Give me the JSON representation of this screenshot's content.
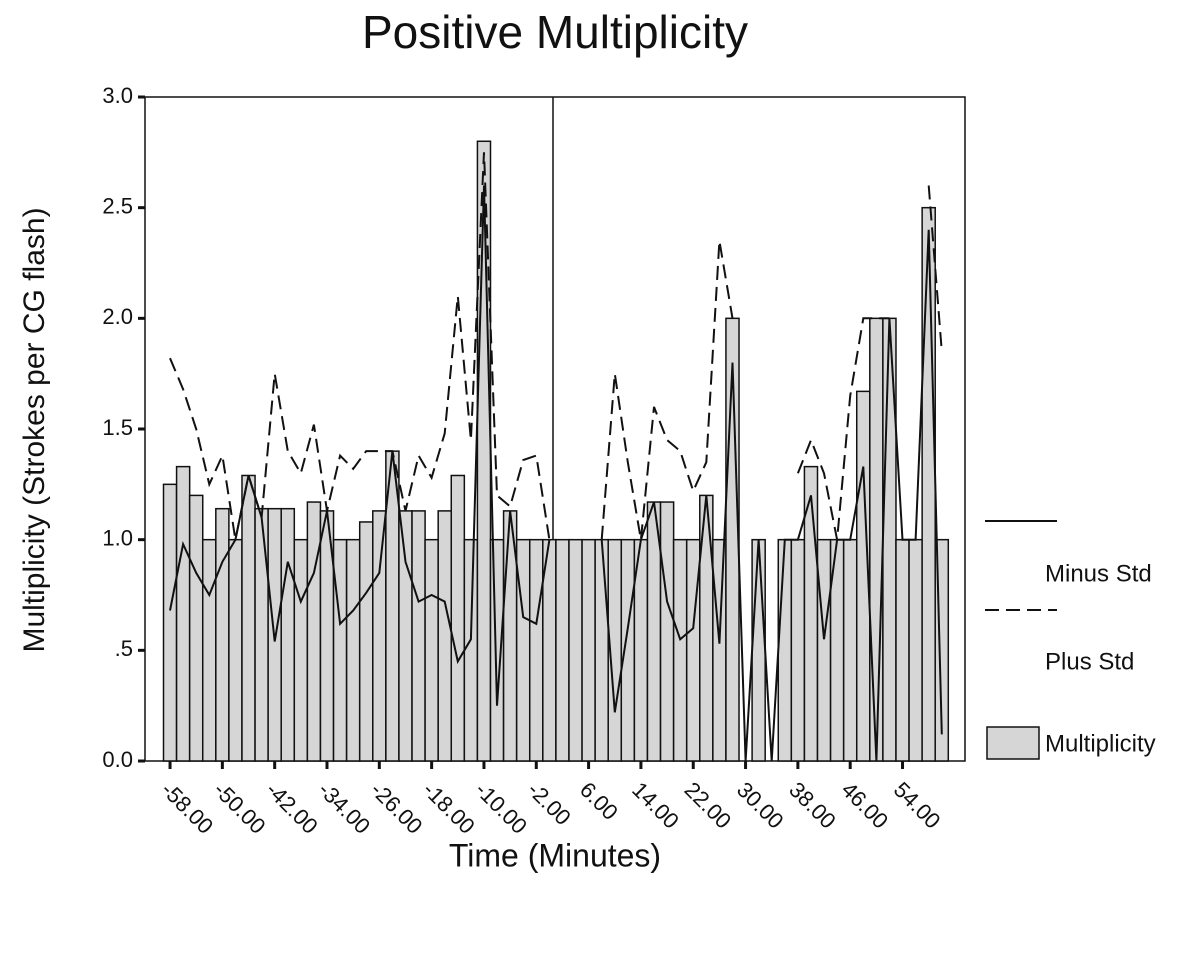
{
  "chart_data": {
    "type": "bar",
    "title": "Positive Multiplicity",
    "x_label": "Time (Minutes)",
    "y_label": "Multiplicity (Strokes per CG flash)",
    "categories": [
      "-58.00",
      null,
      null,
      null,
      "-50.00",
      null,
      null,
      null,
      "-42.00",
      null,
      null,
      null,
      "-34.00",
      null,
      null,
      null,
      "-26.00",
      null,
      null,
      null,
      "-18.00",
      null,
      null,
      null,
      "-10.00",
      null,
      null,
      null,
      "-2.00",
      null,
      null,
      null,
      "6.00",
      null,
      null,
      null,
      "14.00",
      null,
      null,
      null,
      "22.00",
      null,
      null,
      null,
      "30.00",
      null,
      null,
      null,
      "38.00",
      null,
      null,
      null,
      "46.00",
      null,
      null,
      null,
      "54.00",
      null,
      null,
      null
    ],
    "ylim": [
      0,
      3
    ],
    "yticks": [
      {
        "value": 0,
        "label": "0.0"
      },
      {
        "value": 0.5,
        "label": ".5"
      },
      {
        "value": 1,
        "label": "1.0"
      },
      1.5,
      {
        "value": 2,
        "label": "2.0"
      },
      2.5,
      {
        "value": 3,
        "label": "3.0"
      }
    ],
    "series": [
      {
        "name": "Minus Std",
        "type": "line",
        "color": "#111111",
        "dashed": false,
        "values": [
          0.68,
          0.98,
          0.85,
          0.75,
          0.9,
          1.0,
          1.29,
          1.1,
          0.54,
          0.9,
          0.72,
          0.85,
          1.13,
          0.62,
          0.68,
          0.76,
          0.85,
          1.4,
          0.9,
          0.72,
          0.75,
          0.72,
          0.45,
          0.55,
          2.6,
          0.25,
          1.13,
          0.65,
          0.62,
          1.0,
          null,
          null,
          null,
          1.0,
          0.22,
          0.6,
          1.0,
          1.17,
          0.72,
          0.55,
          0.6,
          1.2,
          0.53,
          1.8,
          0.0,
          1.0,
          0.0,
          1.0,
          1.0,
          1.2,
          0.55,
          1.0,
          1.0,
          1.33,
          0.0,
          2.0,
          1.0,
          1.0,
          2.4,
          0.12
        ]
      },
      {
        "name": "Plus Std",
        "type": "line",
        "color": "#111111",
        "dashed": true,
        "values": [
          1.82,
          1.68,
          1.5,
          1.25,
          1.38,
          1.0,
          1.29,
          1.1,
          1.75,
          1.4,
          1.3,
          1.52,
          1.13,
          1.38,
          1.32,
          1.4,
          1.4,
          1.4,
          1.13,
          1.38,
          1.28,
          1.48,
          2.1,
          1.45,
          2.75,
          1.2,
          1.15,
          1.36,
          1.38,
          1.0,
          null,
          null,
          null,
          1.0,
          1.75,
          1.35,
          1.0,
          1.6,
          1.45,
          1.4,
          1.22,
          1.35,
          2.35,
          2.0,
          null,
          null,
          null,
          null,
          1.3,
          1.45,
          1.3,
          1.0,
          1.65,
          2.0,
          2.0,
          2.0,
          null,
          null,
          2.6,
          1.85
        ]
      },
      {
        "name": "Multiplicity",
        "type": "bar",
        "color": "#d6d6d6",
        "values": [
          1.25,
          1.33,
          1.2,
          1.0,
          1.14,
          1.0,
          1.29,
          1.14,
          1.14,
          1.14,
          1.0,
          1.17,
          1.13,
          1.0,
          1.0,
          1.08,
          1.13,
          1.4,
          1.13,
          1.13,
          1.0,
          1.13,
          1.29,
          1.0,
          2.8,
          1.0,
          1.13,
          1.0,
          1.0,
          1.0,
          1.0,
          1.0,
          1.0,
          1.0,
          1.0,
          1.0,
          1.0,
          1.17,
          1.17,
          1.0,
          1.0,
          1.2,
          1.0,
          2.0,
          null,
          1.0,
          null,
          1.0,
          1.0,
          1.33,
          1.0,
          1.0,
          1.0,
          1.67,
          2.0,
          2.0,
          1.0,
          1.0,
          2.5,
          1.0
        ]
      }
    ]
  }
}
